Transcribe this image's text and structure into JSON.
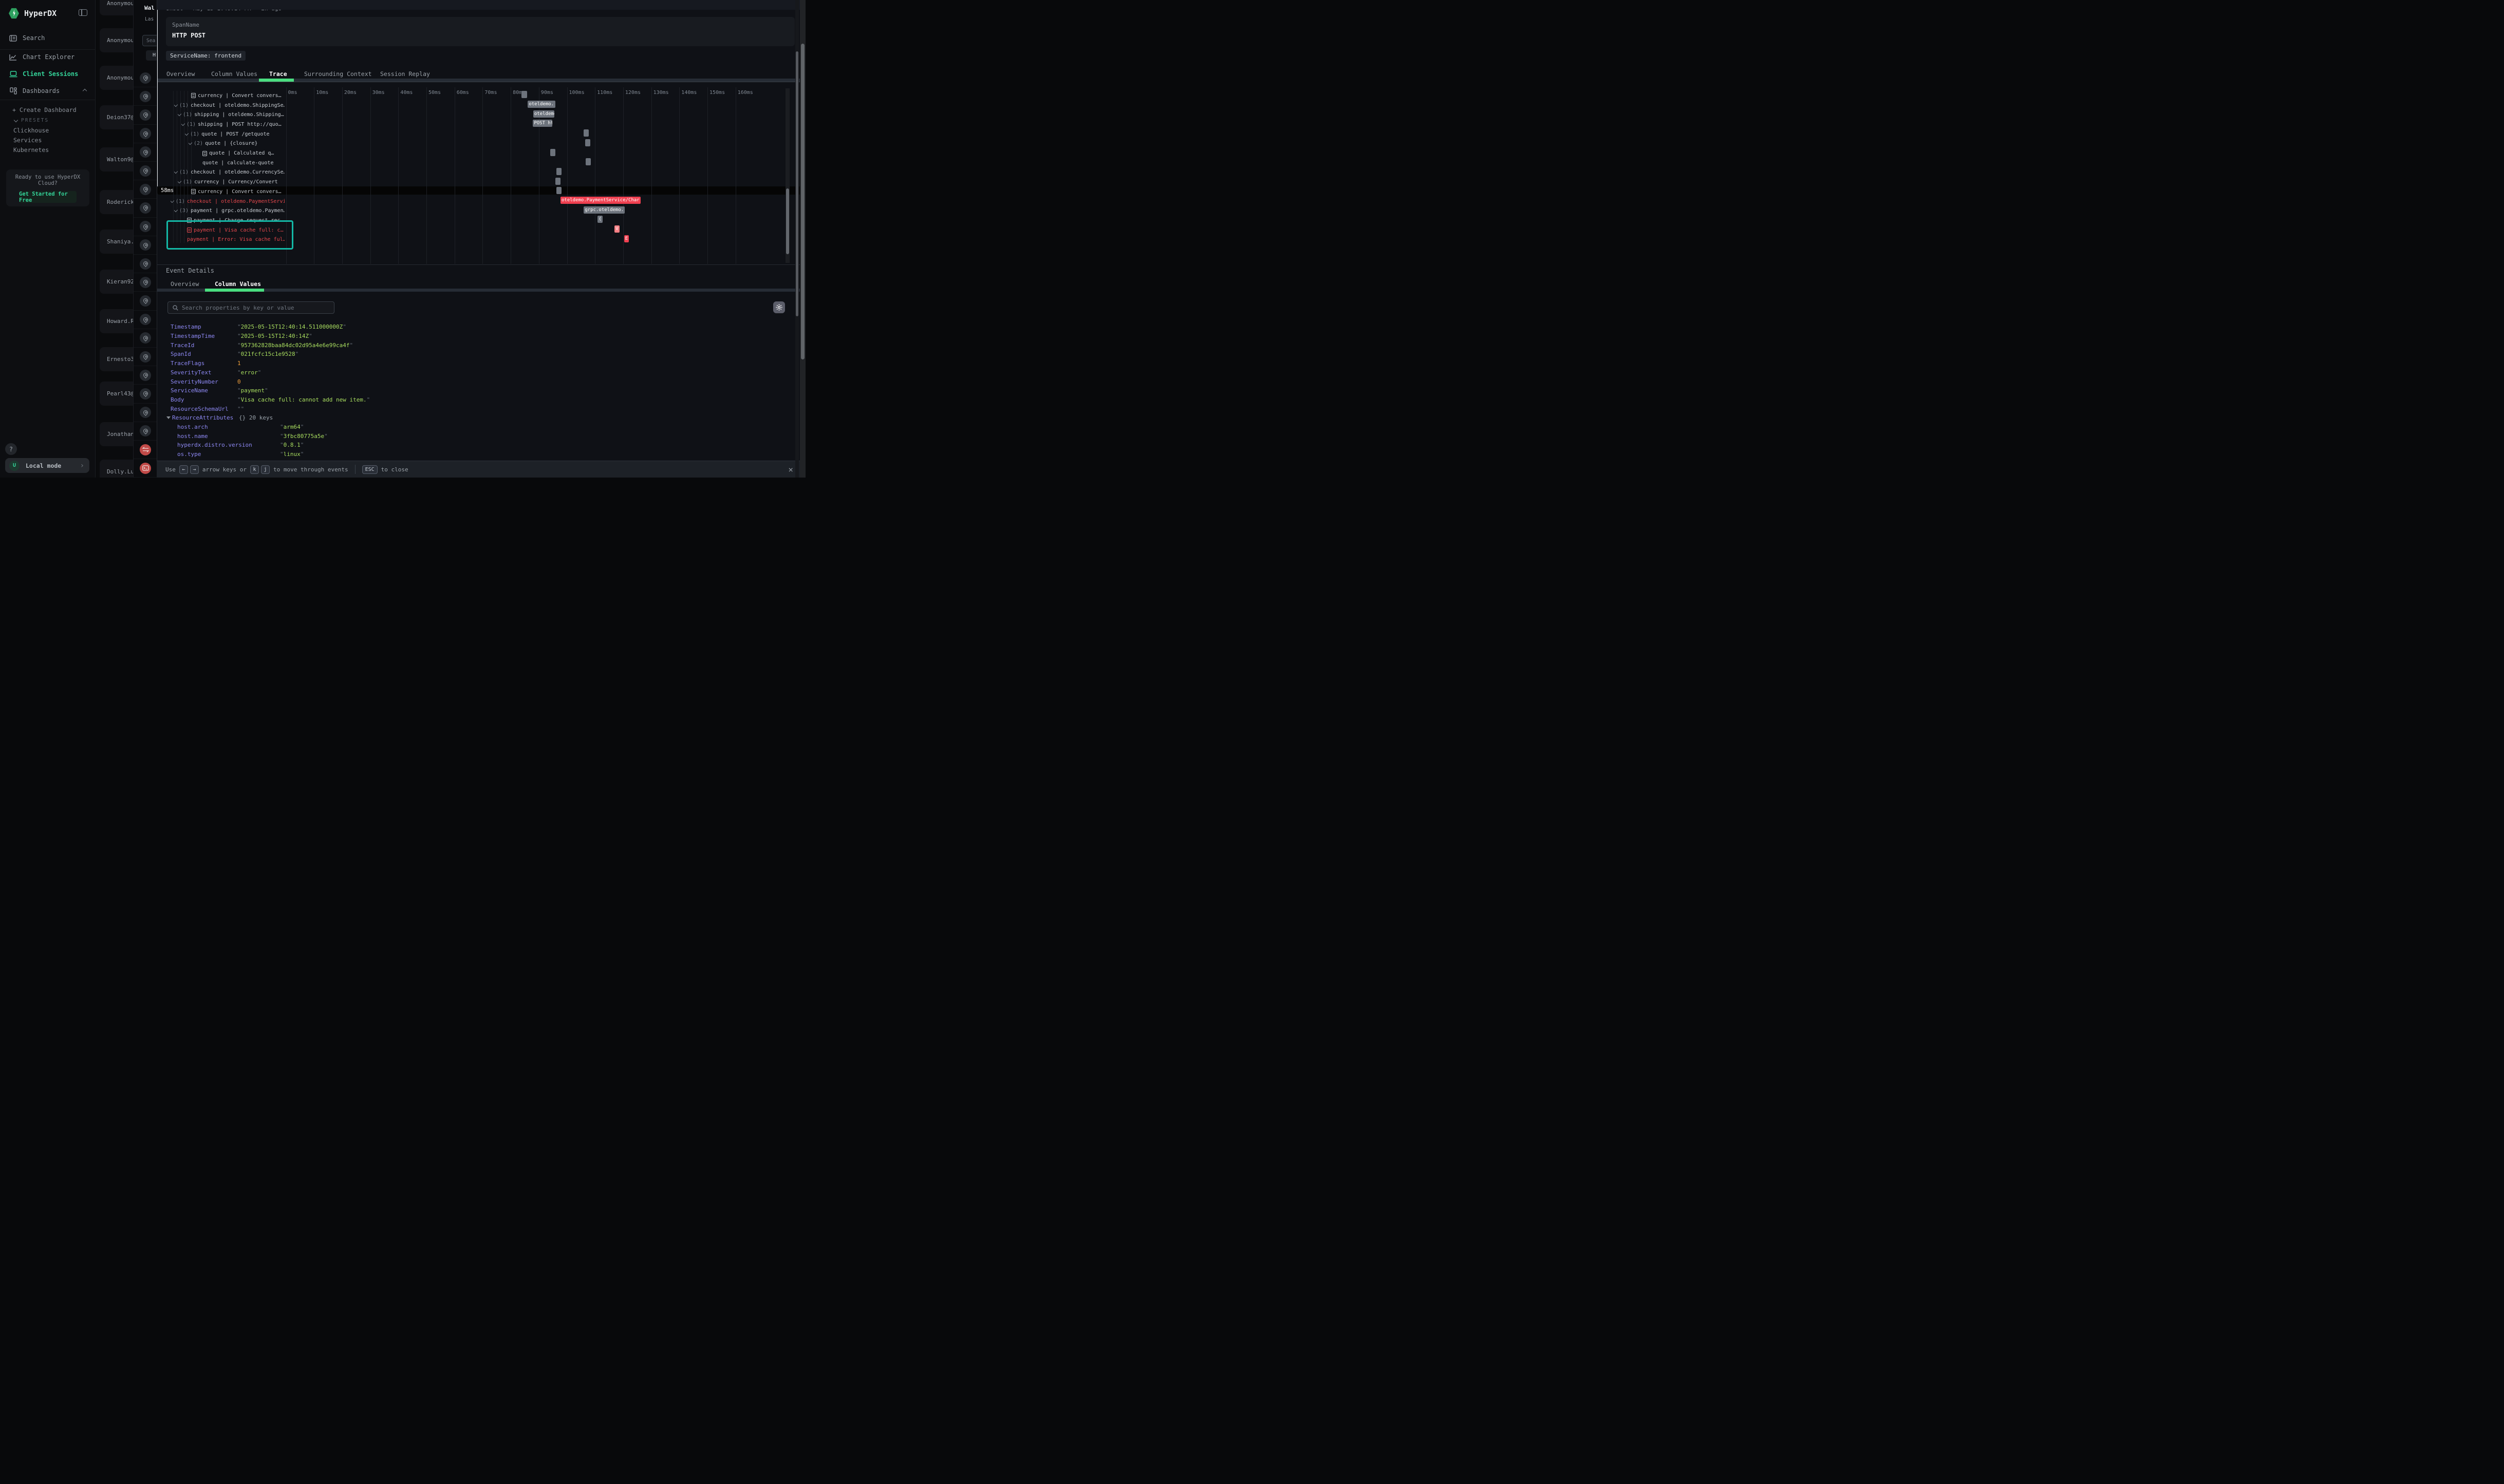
{
  "colors": {
    "accent_green": "#4ade80",
    "brand_green": "#2ea05f",
    "active_nav": "#34d399",
    "error_red": "#e5484d",
    "bar_red": "#ef4050",
    "bar_salmon": "#f87f84",
    "bar_grey": "#6d737c",
    "annotation_teal": "#14b8a6",
    "key_violet": "#8d88f2",
    "value_lime": "#a8dd5f",
    "value_orange": "#f2a13c"
  },
  "sidebar": {
    "app_name": "HyperDX",
    "nav": [
      {
        "icon": "search-icon",
        "label": "Search",
        "active": false
      },
      {
        "icon": "chart-explorer-icon",
        "label": "Chart Explorer",
        "active": false
      },
      {
        "icon": "client-sessions-icon",
        "label": "Client Sessions",
        "active": true
      },
      {
        "icon": "dashboards-icon",
        "label": "Dashboards",
        "active": false,
        "chevron": "up"
      }
    ],
    "create_dashboard": "+ Create Dashboard",
    "presets_label": "PRESETS",
    "presets": [
      "Clickhouse",
      "Services",
      "Kubernetes"
    ],
    "cloud_card": {
      "line1": "Ready to use HyperDX",
      "line2": "Cloud?",
      "cta": "Get Started for Free"
    },
    "help_label": "?",
    "local_mode": {
      "avatar": "U",
      "label": "Local mode",
      "chevron": "›"
    }
  },
  "session_list": {
    "names": [
      "Anonymous",
      "Anonymous",
      "Anonymous",
      "Deion37@gm",
      "Walton9@ho",
      "Roderick_S",
      "Shaniya.Sc",
      "Kieran92@h",
      "Howard.Run",
      "Ernesto33@",
      "Pearl43@ho",
      "Jonathan.B",
      "Dolly.Lubo"
    ],
    "centers": [
      6,
      78,
      151,
      228,
      310,
      393,
      470,
      548,
      625,
      699,
      766,
      845,
      918
    ]
  },
  "events_panel": {
    "title_clipped": "Wal",
    "subtitle_clipped": "Las",
    "search_clipped": "Sea",
    "filter_clipped": "H",
    "icons": [
      "pin",
      "pin",
      "pin",
      "pin",
      "pin",
      "pin",
      "pin",
      "pin",
      "pin",
      "pin",
      "pin",
      "pin",
      "pin",
      "pin",
      "pin",
      "pin",
      "pin",
      "pin",
      "pin",
      "pin",
      "exchange",
      "terminal"
    ]
  },
  "modal": {
    "meta": "Unset · May 15 1:40:14 PM · 2h ago",
    "span_card": {
      "label": "SpanName",
      "value": "HTTP POST"
    },
    "service_badge": "ServiceName: frontend",
    "tabs": [
      "Overview",
      "Column Values",
      "Trace",
      "Surrounding Context",
      "Session Replay"
    ],
    "active_tab": "Trace"
  },
  "trace": {
    "ticks": [
      "0ms",
      "10ms",
      "20ms",
      "30ms",
      "40ms",
      "50ms",
      "60ms",
      "70ms",
      "80ms",
      "90ms",
      "100ms",
      "110ms",
      "120ms",
      "130ms",
      "140ms",
      "150ms",
      "160ms"
    ],
    "playhead": {
      "ms": 58,
      "label": "58ms"
    },
    "rows": [
      {
        "indent": 40,
        "icon": "doc",
        "count": "",
        "label": "currency | Convert convers…",
        "error": false,
        "bar": {
          "s": 83.8,
          "e": 85.8,
          "label": "",
          "color": "grey"
        }
      },
      {
        "indent": 7,
        "icon": "chev",
        "count": "(1)",
        "label": "checkout | oteldemo.ShippingSe…",
        "error": false,
        "bar": {
          "s": 86.0,
          "e": 95.8,
          "label": "oteldemo.",
          "color": "grey"
        }
      },
      {
        "indent": 14,
        "icon": "chev",
        "count": "(1)",
        "label": "shipping | oteldemo.Shipping…",
        "error": false,
        "bar": {
          "s": 88.0,
          "e": 95.5,
          "label": "oteldemo.S",
          "color": "grey"
        }
      },
      {
        "indent": 21,
        "icon": "chev",
        "count": "(1)",
        "label": "shipping | POST http://quo…",
        "error": false,
        "bar": {
          "s": 87.9,
          "e": 94.7,
          "label": "POST ht",
          "color": "grey"
        }
      },
      {
        "indent": 28,
        "icon": "chev",
        "count": "(1)",
        "label": "quote | POST /getquote",
        "error": false,
        "bar": {
          "s": 105.9,
          "e": 107.8,
          "label": "",
          "color": "grey"
        }
      },
      {
        "indent": 35,
        "icon": "chev",
        "count": "(2)",
        "label": "quote | {closure}",
        "error": false,
        "bar": {
          "s": 106.4,
          "e": 108.3,
          "label": "",
          "color": "grey"
        }
      },
      {
        "indent": 62,
        "icon": "doc",
        "count": "",
        "label": "quote | Calculated q…",
        "error": false,
        "bar": {
          "s": 94.1,
          "e": 95.9,
          "label": "",
          "color": "grey"
        }
      },
      {
        "indent": 62,
        "icon": "none",
        "count": "",
        "label": "quote | calculate-quote",
        "error": false,
        "bar": {
          "s": 106.7,
          "e": 108.5,
          "label": "",
          "color": "grey"
        }
      },
      {
        "indent": 7,
        "icon": "chev",
        "count": "(1)",
        "label": "checkout | oteldemo.CurrencySe…",
        "error": false,
        "bar": {
          "s": 96.3,
          "e": 98.1,
          "label": "",
          "color": "grey"
        }
      },
      {
        "indent": 14,
        "icon": "chev",
        "count": "(1)",
        "label": "currency | Currency/Convert",
        "error": false,
        "bar": {
          "s": 95.9,
          "e": 97.7,
          "label": "",
          "color": "grey"
        }
      },
      {
        "indent": 40,
        "icon": "doc",
        "count": "",
        "label": "currency | Convert convers…",
        "error": false,
        "bar": {
          "s": 96.3,
          "e": 98.1,
          "label": "",
          "color": "grey"
        }
      },
      {
        "indent": 0,
        "icon": "chev",
        "count": "(1)",
        "label": "checkout | oteldemo.PaymentServi…",
        "error": true,
        "bar": {
          "s": 97.7,
          "e": 126.2,
          "label": "oteldemo.PaymentService/Char",
          "color": "red"
        }
      },
      {
        "indent": 7,
        "icon": "chev",
        "count": "(3)",
        "label": "payment | grpc.oteldemo.Paymen…",
        "error": false,
        "bar": {
          "s": 106.0,
          "e": 120.5,
          "label": "grpc.oteldemo.",
          "color": "grey"
        }
      },
      {
        "indent": 32,
        "icon": "doc",
        "count": "",
        "label": "payment | Charge request rec…",
        "error": false,
        "bar": {
          "s": 110.9,
          "e": 112.7,
          "label": "(",
          "color": "grey"
        }
      },
      {
        "indent": 32,
        "icon": "doc",
        "count": "",
        "label": "payment | Visa cache full: c…",
        "error": true,
        "highlight": true,
        "bar": {
          "s": 116.9,
          "e": 118.7,
          "label": "V",
          "color": "salmon"
        }
      },
      {
        "indent": 32,
        "icon": "none",
        "count": "",
        "label": "payment | Error: Visa cache ful…",
        "error": true,
        "bar": {
          "s": 120.3,
          "e": 122.1,
          "label": "E",
          "color": "red"
        }
      }
    ]
  },
  "event_details": {
    "title": "Event Details",
    "tabs": [
      "Overview",
      "Column Values"
    ],
    "active_tab": "Column Values",
    "search_placeholder": "Search properties by key or value",
    "properties": [
      {
        "key": "Timestamp",
        "depth": 0,
        "type": "string",
        "value": "2025-05-15T12:40:14.511000000Z"
      },
      {
        "key": "TimestampTime",
        "depth": 0,
        "type": "string",
        "value": "2025-05-15T12:40:14Z"
      },
      {
        "key": "TraceId",
        "depth": 0,
        "type": "string",
        "value": "957362828baa84dc02d95a4e6e99ca4f"
      },
      {
        "key": "SpanId",
        "depth": 0,
        "type": "string",
        "value": "021fcfc15c1e9528"
      },
      {
        "key": "TraceFlags",
        "depth": 0,
        "type": "number",
        "value": "1"
      },
      {
        "key": "SeverityText",
        "depth": 0,
        "type": "string",
        "value": "error"
      },
      {
        "key": "SeverityNumber",
        "depth": 0,
        "type": "number",
        "value": "0"
      },
      {
        "key": "ServiceName",
        "depth": 0,
        "type": "string",
        "value": "payment"
      },
      {
        "key": "Body",
        "depth": 0,
        "type": "string",
        "value": "Visa cache full: cannot add new item."
      },
      {
        "key": "ResourceSchemaUrl",
        "depth": 0,
        "type": "string",
        "value": ""
      },
      {
        "key": "ResourceAttributes",
        "depth": 0,
        "type": "meta",
        "value": "{} 20 keys",
        "expander": true
      },
      {
        "key": "host.arch",
        "depth": 1,
        "type": "string",
        "value": "arm64"
      },
      {
        "key": "host.name",
        "depth": 1,
        "type": "string",
        "value": "3fbc80775a5e"
      },
      {
        "key": "hyperdx.distro.version",
        "depth": 1,
        "type": "string",
        "value": "0.8.1"
      },
      {
        "key": "os.type",
        "depth": 1,
        "type": "string",
        "value": "linux"
      }
    ]
  },
  "footer": {
    "use": "Use",
    "arrow_keys": [
      "←",
      "→"
    ],
    "mid": "arrow keys or",
    "letter_keys": [
      "k",
      "j"
    ],
    "tail": "to move through events",
    "esc": "ESC",
    "close_hint": "to close"
  }
}
